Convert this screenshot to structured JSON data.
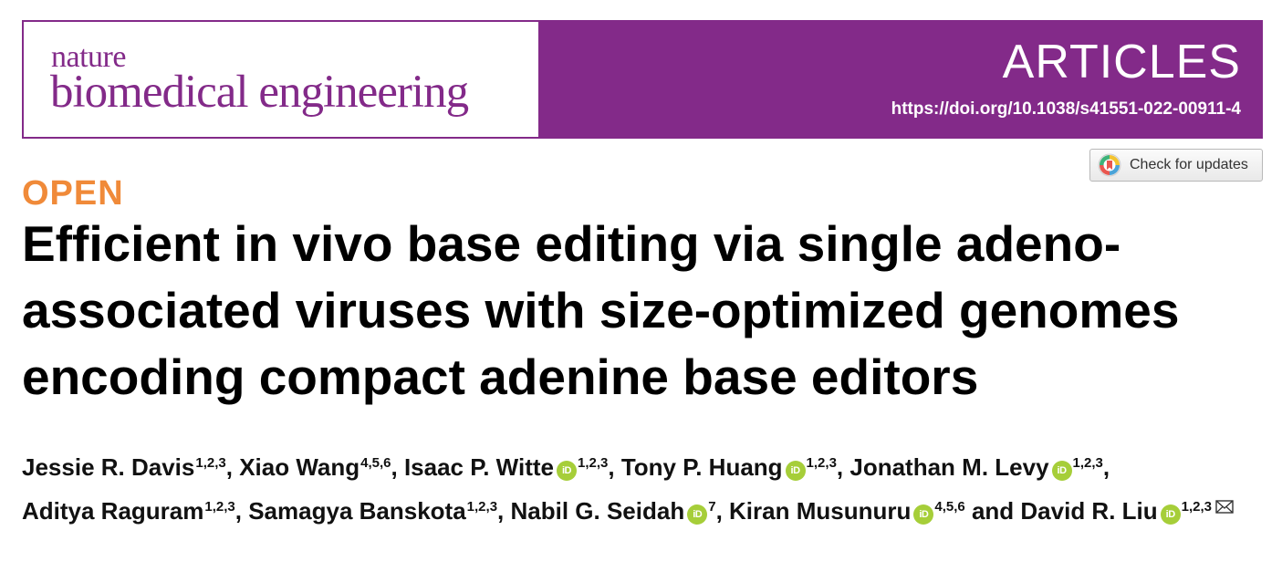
{
  "header": {
    "journal_line1": "nature",
    "journal_line2": "biomedical engineering",
    "section": "ARTICLES",
    "doi": "https://doi.org/10.1038/s41551-022-00911-4",
    "brand_color": "#832a89"
  },
  "check_updates": {
    "label": "Check for updates",
    "icon": "crossmark-icon"
  },
  "open_access_label": "OPEN",
  "article_title": "Efficient in vivo base editing via single adeno-associated viruses with size-optimized genomes encoding compact adenine base editors",
  "orcid_icon_text": "iD",
  "authors": [
    {
      "name": "Jessie R. Davis",
      "sup": "1,2,3",
      "sep": ", "
    },
    {
      "name": "Xiao Wang",
      "sup": "4,5,6",
      "sep": ", "
    },
    {
      "name": "Isaac P. Witte",
      "sup": "1,2,3",
      "sep": ", "
    },
    {
      "name": "Tony P. Huang",
      "sup": "1,2,3",
      "sep": ", "
    },
    {
      "name": "Jonathan M. Levy",
      "sup": "1,2,3",
      "sep": ", "
    },
    {
      "name": "Aditya Raguram",
      "sup": "1,2,3",
      "sep": ", "
    },
    {
      "name": "Samagya Banskota",
      "sup": "1,2,3",
      "sep": ", "
    },
    {
      "name": "Nabil G. Seidah",
      "sup": "7",
      "sep": ", "
    },
    {
      "name": "Kiran Musunuru",
      "sup": "4,5,6",
      "sep": " and "
    },
    {
      "name": "David R. Liu",
      "sup": "1,2,3",
      "sep": ""
    }
  ]
}
